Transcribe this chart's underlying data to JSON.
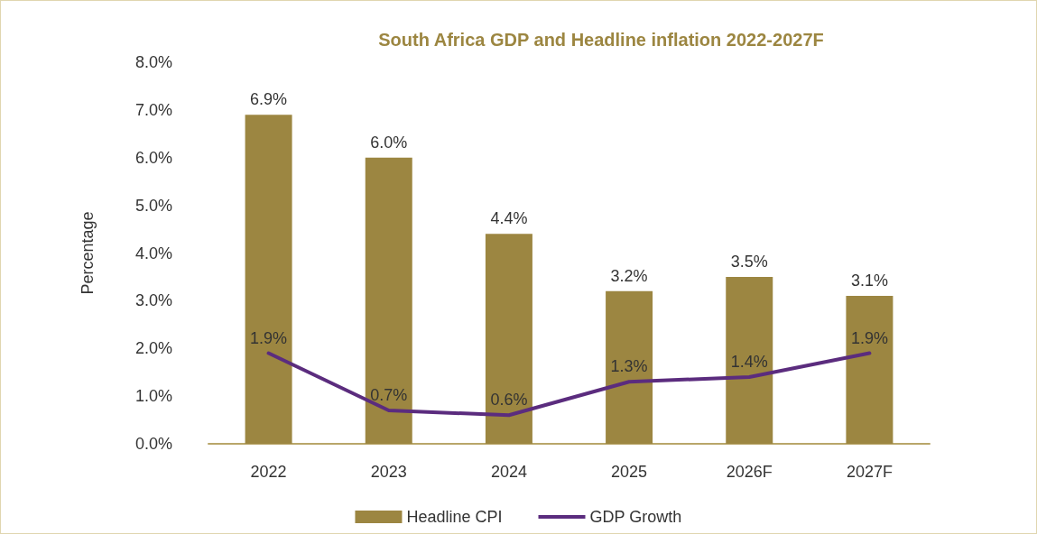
{
  "chart_data": {
    "type": "bar",
    "title": "South Africa GDP and Headline inflation 2022-2027F",
    "ylabel": "Percentage",
    "categories": [
      "2022",
      "2023",
      "2024",
      "2025",
      "2026F",
      "2027F"
    ],
    "series": [
      {
        "name": "Headline CPI",
        "color": "#9c8641",
        "values": [
          6.9,
          6.0,
          4.4,
          3.2,
          3.5,
          3.1
        ],
        "value_labels": [
          "6.9%",
          "6.0%",
          "4.4%",
          "3.2%",
          "3.5%",
          "3.1%"
        ]
      },
      {
        "name": "GDP Growth",
        "type": "line",
        "color": "#5b2c7e",
        "values": [
          1.9,
          0.7,
          0.6,
          1.3,
          1.4,
          1.9
        ],
        "value_labels": [
          "1.9%",
          "0.7%",
          "0.6%",
          "1.3%",
          "1.4%",
          "1.9%"
        ]
      }
    ],
    "ylim": [
      0,
      8
    ],
    "yticks": [
      {
        "value": 0,
        "label": "0.0%"
      },
      {
        "value": 1,
        "label": "1.0%"
      },
      {
        "value": 2,
        "label": "2.0%"
      },
      {
        "value": 3,
        "label": "3.0%"
      },
      {
        "value": 4,
        "label": "4.0%"
      },
      {
        "value": 5,
        "label": "5.0%"
      },
      {
        "value": 6,
        "label": "6.0%"
      },
      {
        "value": 7,
        "label": "7.0%"
      },
      {
        "value": 8,
        "label": "8.0%"
      }
    ],
    "grid": false,
    "legend": "bottom",
    "marker": "none",
    "line_style": "solid"
  }
}
